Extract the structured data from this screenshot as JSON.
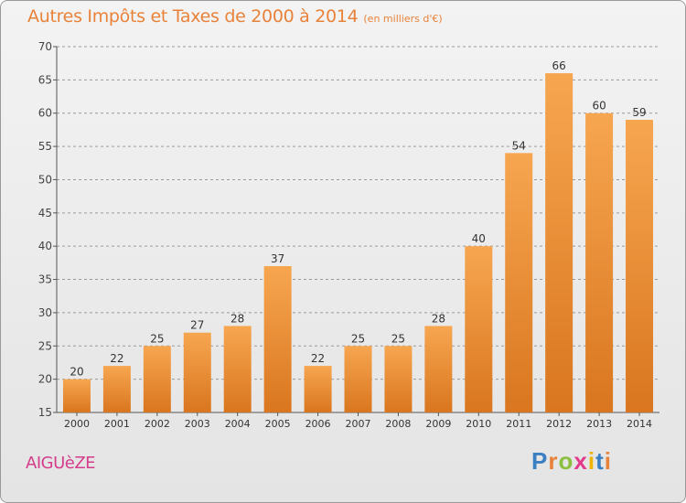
{
  "title": "Autres Impôts et Taxes de 2000 à 2014",
  "unit": "(en milliers d'€)",
  "commune": "AIGUèZE",
  "logo": {
    "text": "Proxiti",
    "letter_colors": [
      "#3a7fc1",
      "#e8823a",
      "#8cbf3f",
      "#e23a8b",
      "#f0b400",
      "#3a7fc1",
      "#e8823a"
    ]
  },
  "colors": {
    "title": "#e8823a",
    "bar_light": "#f7a650",
    "bar_dark": "#d9761f",
    "grid": "#9a9a9a",
    "commune": "#d43c8c"
  },
  "chart_data": {
    "type": "bar",
    "categories": [
      "2000",
      "2001",
      "2002",
      "2003",
      "2004",
      "2005",
      "2006",
      "2007",
      "2008",
      "2009",
      "2010",
      "2011",
      "2012",
      "2013",
      "2014"
    ],
    "values": [
      20,
      22,
      25,
      27,
      28,
      37,
      22,
      25,
      25,
      28,
      40,
      54,
      66,
      60,
      59
    ],
    "ylim": [
      15,
      70
    ],
    "yticks": [
      15,
      20,
      25,
      30,
      35,
      40,
      45,
      50,
      55,
      60,
      65,
      70
    ],
    "grid": "horizontal dashed",
    "title": "Autres Impôts et Taxes de 2000 à 2014",
    "xlabel": "",
    "ylabel": ""
  }
}
